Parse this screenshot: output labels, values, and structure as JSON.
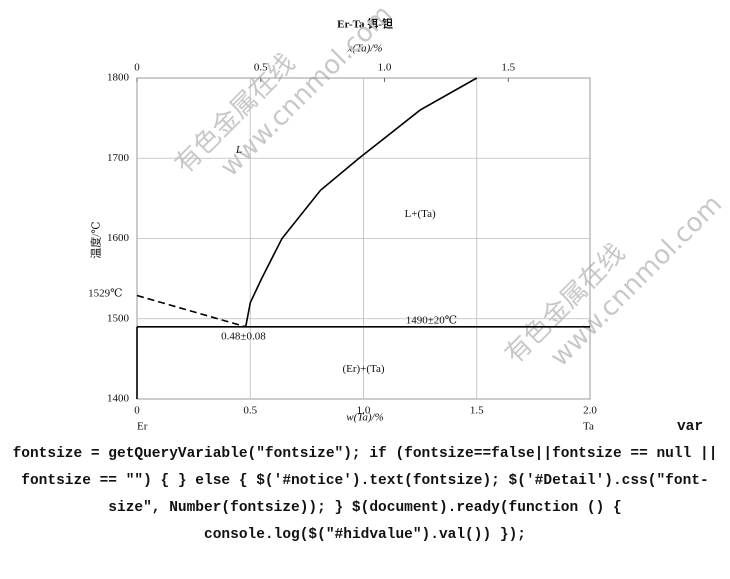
{
  "chart_data": {
    "type": "line",
    "title": "Er-Ta  铒-钽",
    "x_label": "w(Ta)/%",
    "x2_label": "x(Ta)/%",
    "y_label": "温度/℃",
    "left_element": "Er",
    "right_element": "Ta",
    "xlim": [
      0,
      2.0
    ],
    "xticks": [
      0,
      0.5,
      {
        "value": 1.0,
        "label": "1.0"
      },
      1.5,
      {
        "value": 2.0,
        "label": "2.0"
      }
    ],
    "x2lim": [
      0,
      1.83
    ],
    "x2ticks": [
      0,
      0.5,
      {
        "value": 1.0,
        "label": "1.0"
      },
      1.5
    ],
    "ylim": [
      1400,
      1800
    ],
    "yticks": [
      1400,
      1500,
      1600,
      1700,
      1800
    ],
    "grid": true,
    "series": [
      {
        "color": "#000000",
        "dashed": true,
        "x": [
          0,
          0.48
        ],
        "y": [
          1529,
          1490
        ]
      },
      {
        "color": "#000000",
        "dashed": false,
        "x": [
          0.48,
          0.5,
          0.55,
          0.64,
          0.81,
          0.98,
          1.25,
          1.5
        ],
        "y": [
          1490,
          1520,
          1550,
          1600,
          1660,
          1700,
          1760,
          1800
        ]
      },
      {
        "color": "#000000",
        "dashed": false,
        "x": [
          0,
          2.0
        ],
        "y": [
          1490,
          1490
        ]
      },
      {
        "color": "#000000",
        "dashed": false,
        "x": [
          0,
          0
        ],
        "y": [
          1400,
          1490
        ]
      }
    ],
    "annotations": [
      {
        "text": "L",
        "x": 0.45,
        "y": 1710,
        "italic": true
      },
      {
        "text": "L+(Ta)",
        "x": 1.25,
        "y": 1630
      },
      {
        "text": "(Er)+(Ta)",
        "x": 1.0,
        "y": 1437
      },
      {
        "text": "1490±20℃",
        "x": 1.3,
        "y": 1497
      },
      {
        "text": "0.48±0.08",
        "x": 0.47,
        "y": 1477
      },
      {
        "text": "1529℃",
        "x": -0.14,
        "y": 1531
      }
    ]
  },
  "watermarks": [
    "有色金属在线",
    "www.cnnmol.com"
  ],
  "code_text": "var fontsize = getQueryVariable(\"fontsize\"); if (fontsize==false||fontsize == null || fontsize == \"\") { } else { $('#notice').text(fontsize); $('#Detail').css(\"font-size\", Number(fontsize)); } $(document).ready(function () { console.log($(\"#hidvalue\").val()) });"
}
